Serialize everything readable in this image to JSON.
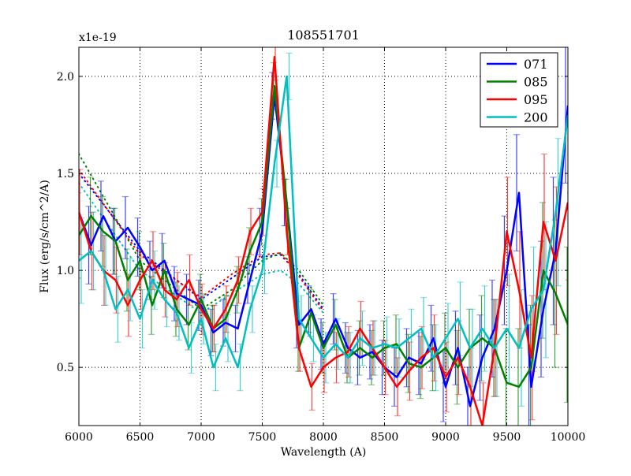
{
  "chart_data": {
    "type": "line",
    "title": "108551701",
    "xlabel": "Wavelength (A)",
    "ylabel": "Flux (erg/s/cm^2/A)",
    "y_offset_label": "x1e-19",
    "xlim": [
      6000,
      10000
    ],
    "ylim": [
      0.2,
      2.15
    ],
    "xticks": [
      6000,
      6500,
      7000,
      7500,
      8000,
      8500,
      9000,
      9500,
      10000
    ],
    "yticks": [
      0.5,
      1.0,
      1.5,
      2.0
    ],
    "ytick_labels": [
      "0.5",
      "1.0",
      "1.5",
      "2.0"
    ],
    "grid": true,
    "legend_position": "top-right",
    "x": [
      6000,
      6100,
      6200,
      6300,
      6400,
      6500,
      6600,
      6700,
      6800,
      6900,
      7000,
      7100,
      7200,
      7300,
      7400,
      7500,
      7600,
      7700,
      7800,
      7900,
      8000,
      8100,
      8200,
      8300,
      8400,
      8500,
      8600,
      8700,
      8800,
      8900,
      9000,
      9100,
      9200,
      9300,
      9400,
      9500,
      9600,
      9700,
      9800,
      9900,
      10000
    ],
    "yerr": [
      0.22,
      0.2,
      0.18,
      0.17,
      0.16,
      0.15,
      0.15,
      0.14,
      0.14,
      0.13,
      0.13,
      0.12,
      0.12,
      0.12,
      0.12,
      0.12,
      0.12,
      0.12,
      0.12,
      0.12,
      0.13,
      0.13,
      0.13,
      0.14,
      0.14,
      0.14,
      0.15,
      0.15,
      0.16,
      0.17,
      0.18,
      0.19,
      0.2,
      0.22,
      0.25,
      0.28,
      0.3,
      0.32,
      0.35,
      0.38,
      0.4
    ],
    "model_x": [
      6000,
      6500,
      7000,
      7250,
      7500,
      7650,
      7800,
      8000
    ],
    "series": [
      {
        "name": "071",
        "color": "#0000ff",
        "values": [
          1.3,
          1.13,
          1.28,
          1.15,
          1.22,
          1.12,
          1.0,
          1.05,
          0.88,
          0.85,
          0.82,
          0.68,
          0.73,
          0.7,
          0.95,
          1.2,
          1.9,
          1.35,
          0.72,
          0.8,
          0.62,
          0.75,
          0.6,
          0.55,
          0.58,
          0.5,
          0.45,
          0.55,
          0.52,
          0.65,
          0.4,
          0.6,
          0.3,
          0.55,
          0.7,
          1.0,
          1.4,
          0.4,
          0.8,
          1.1,
          1.85
        ],
        "model": [
          1.5,
          1.1,
          0.85,
          0.96,
          1.07,
          1.08,
          0.98,
          0.8
        ]
      },
      {
        "name": "085",
        "color": "#008000",
        "values": [
          1.18,
          1.28,
          1.2,
          1.15,
          0.95,
          1.05,
          0.82,
          1.0,
          0.8,
          0.72,
          0.85,
          0.7,
          0.75,
          0.9,
          1.1,
          1.25,
          1.95,
          1.35,
          0.6,
          0.78,
          0.6,
          0.72,
          0.55,
          0.6,
          0.55,
          0.6,
          0.62,
          0.52,
          0.5,
          0.55,
          0.6,
          0.5,
          0.6,
          0.65,
          0.6,
          0.42,
          0.4,
          0.5,
          1.0,
          0.88,
          0.72
        ],
        "model": [
          1.6,
          1.05,
          0.8,
          0.9,
          1.05,
          1.09,
          1.0,
          0.82
        ]
      },
      {
        "name": "095",
        "color": "#ff0000",
        "values": [
          1.3,
          1.1,
          1.0,
          0.95,
          0.82,
          0.95,
          1.05,
          0.9,
          0.85,
          0.95,
          0.8,
          0.7,
          0.8,
          0.95,
          1.2,
          1.3,
          2.1,
          1.2,
          0.6,
          0.4,
          0.5,
          0.55,
          0.58,
          0.7,
          0.6,
          0.5,
          0.4,
          0.48,
          0.55,
          0.6,
          0.45,
          0.55,
          0.4,
          0.2,
          0.6,
          1.2,
          0.9,
          0.55,
          1.25,
          1.05,
          1.35
        ],
        "model": [
          1.52,
          1.08,
          0.86,
          0.98,
          1.08,
          1.09,
          0.97,
          0.79
        ]
      },
      {
        "name": "200",
        "color": "#00bfbf",
        "values": [
          1.05,
          1.1,
          1.0,
          0.8,
          0.9,
          0.75,
          0.95,
          0.85,
          0.78,
          0.6,
          0.75,
          0.5,
          0.65,
          0.5,
          0.8,
          1.0,
          1.55,
          2.0,
          0.75,
          0.65,
          0.55,
          0.62,
          0.55,
          0.65,
          0.6,
          0.62,
          0.6,
          0.65,
          0.7,
          0.55,
          0.65,
          0.75,
          0.6,
          0.7,
          0.6,
          0.7,
          0.6,
          0.8,
          0.9,
          1.3,
          1.8
        ],
        "model": [
          1.45,
          1.0,
          0.78,
          0.88,
          0.98,
          1.0,
          0.93,
          0.78
        ]
      }
    ]
  }
}
